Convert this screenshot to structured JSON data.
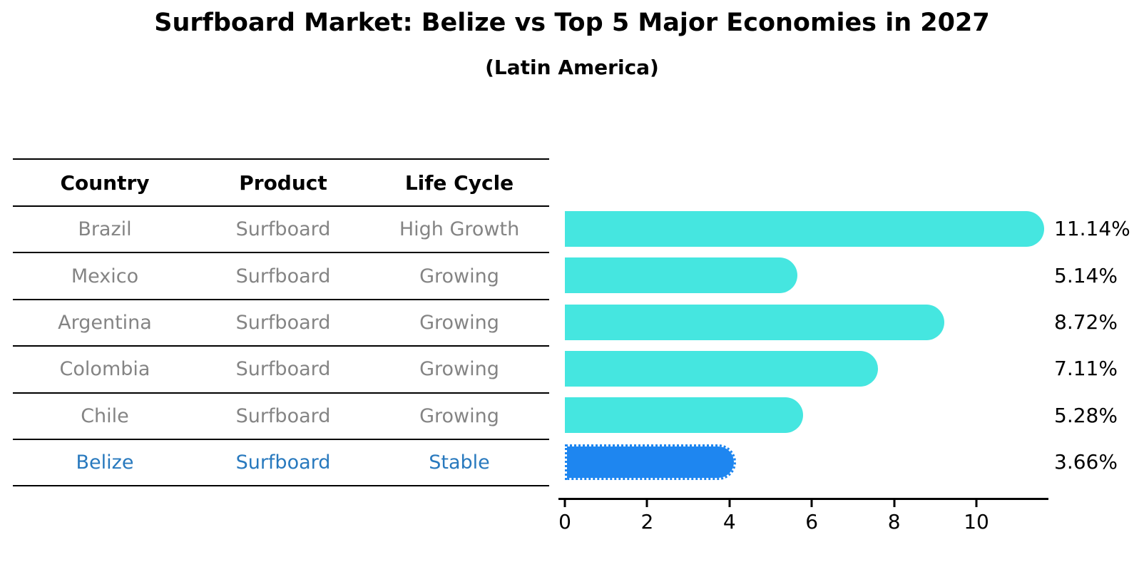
{
  "header": {
    "title": "Surfboard Market: Belize vs Top 5 Major Economies in 2027",
    "subtitle": "(Latin America)"
  },
  "table": {
    "columns": [
      "Country",
      "Product",
      "Life Cycle"
    ]
  },
  "chart_data": {
    "type": "bar",
    "orientation": "horizontal",
    "title": "Surfboard Market: Belize vs Top 5 Major Economies in 2027",
    "subtitle": "(Latin America)",
    "categories": [
      "Brazil",
      "Mexico",
      "Argentina",
      "Colombia",
      "Chile",
      "Belize"
    ],
    "values": [
      11.14,
      5.14,
      8.72,
      7.11,
      5.28,
      3.66
    ],
    "value_labels": [
      "11.14%",
      "5.14%",
      "8.72%",
      "7.11%",
      "5.28%",
      "3.66%"
    ],
    "products": [
      "Surfboard",
      "Surfboard",
      "Surfboard",
      "Surfboard",
      "Surfboard",
      "Surfboard"
    ],
    "life_cycles": [
      "High Growth",
      "Growing",
      "Growing",
      "Growing",
      "Growing",
      "Stable"
    ],
    "highlight_index": 5,
    "x_ticks": [
      0,
      2,
      4,
      6,
      8,
      10
    ],
    "xlim": [
      0,
      11.75
    ],
    "grid": false,
    "legend": false,
    "colors": {
      "bar": "#45e6e0",
      "highlight_bar": "#1e86f0",
      "highlight_text": "#2879be",
      "row_text": "#848484",
      "label_text": "#000000",
      "axis": "#000000"
    }
  }
}
